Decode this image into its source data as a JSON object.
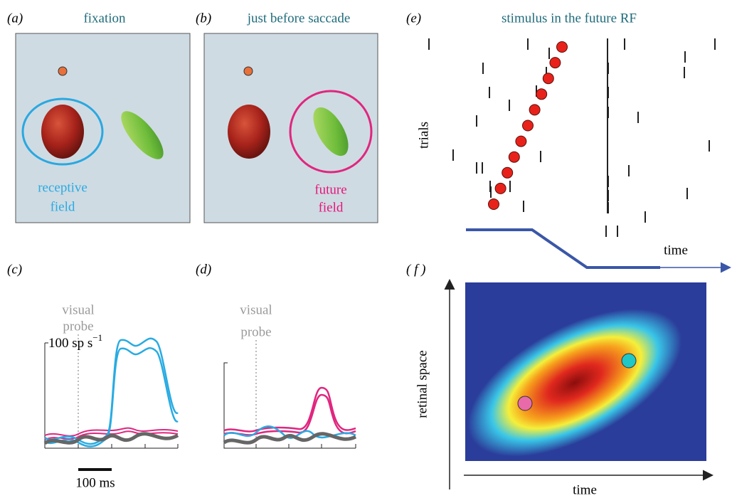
{
  "panels": {
    "a": {
      "label": "(a)",
      "title": "fixation",
      "annotation": [
        "receptive",
        "field"
      ]
    },
    "b": {
      "label": "(b)",
      "title": "just before saccade",
      "annotation": [
        "future",
        "field"
      ]
    },
    "c": {
      "label": "(c)",
      "probe": [
        "visual",
        "probe"
      ],
      "rate_scale": "100 sp s",
      "rate_scale_sup": "−1",
      "time_scale": "100 ms"
    },
    "d": {
      "label": "(d)",
      "probe": [
        "visual",
        "probe"
      ]
    },
    "e": {
      "label": "(e)",
      "title": "stimulus in the future RF",
      "y_label": "trials",
      "x_label": "time"
    },
    "f": {
      "label": "( f )",
      "y_label": "retinal space",
      "x_label": "time"
    }
  }
}
